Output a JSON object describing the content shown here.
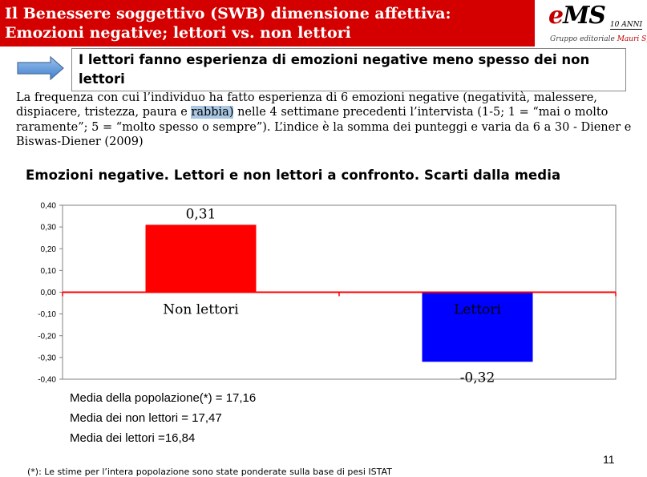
{
  "header": {
    "title_line1": "Il Benessere soggettivo (SWB) dimensione affettiva:",
    "title_line2": "Emozioni negative; lettori vs. non lettori"
  },
  "logo": {
    "mark_e": "e",
    "mark_rest": "MS",
    "badge": "10 ANNI",
    "caption_prefix": "Gruppo editoriale ",
    "caption_brand": "Mauri Spagnol"
  },
  "callout": {
    "text": "I lettori fanno esperienza di emozioni negative meno spesso dei non lettori"
  },
  "description": {
    "before": "La frequenza con cui l’individuo ha fatto esperienza di 6 emozioni negative (negatività, malessere, dispiacere, tristezza, paura e ",
    "highlight": "rabbia)",
    "after": " nelle 4 settimane precedenti l’intervista (1-5; 1 = “mai o molto raramente”; 5 = “molto spesso o sempre”). L’indice è la somma dei punteggi e varia da 6 a 30 - Diener e Biswas-Diener (2009)"
  },
  "chart_data": {
    "type": "bar",
    "title": "Emozioni negative. Lettori e non lettori a confronto. Scarti dalla media",
    "categories": [
      "Non lettori",
      "Lettori"
    ],
    "values": [
      0.31,
      -0.32
    ],
    "data_labels": [
      "0,31",
      "-0,32"
    ],
    "bar_colors": [
      "#ff0000",
      "#0000ff"
    ],
    "axis_color": "#ff0000",
    "ylim": [
      -0.4,
      0.4
    ],
    "yticks": [
      "0,40",
      "0,30",
      "0,20",
      "0,10",
      "0,00",
      "-0,10",
      "-0,20",
      "-0,30",
      "-0,40"
    ],
    "ytick_values": [
      0.4,
      0.3,
      0.2,
      0.1,
      0,
      -0.1,
      -0.2,
      -0.3,
      -0.4
    ],
    "grid": false,
    "xlabel": "",
    "ylabel": ""
  },
  "stats": {
    "line1": "Media della popolazione(*) = 17,16",
    "line2": "Media dei non lettori = 17,47",
    "line3": "Media dei lettori =16,84"
  },
  "page_number": "11",
  "footnote": "(*): Le stime per l’intera popolazione sono state ponderate sulla base di pesi ISTAT"
}
